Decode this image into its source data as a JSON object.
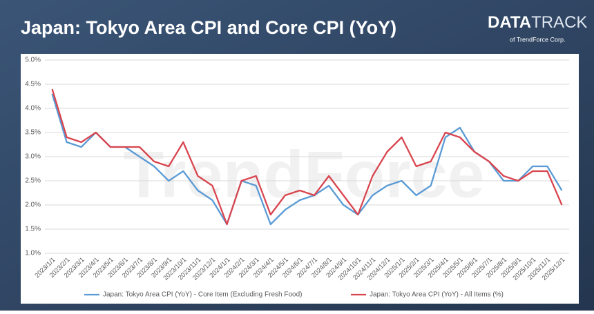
{
  "header": {
    "title": "Japan: Tokyo Area CPI and Core CPI (YoY)",
    "logo_main": "DATA",
    "logo_accent": "TRACK",
    "logo_sub": "of TrendForce Corp."
  },
  "watermark": "TrendForce",
  "chart_data": {
    "type": "line",
    "categories": [
      "2023/1/1",
      "2023/2/1",
      "2023/3/1",
      "2023/4/1",
      "2023/5/1",
      "2023/6/1",
      "2023/7/1",
      "2023/8/1",
      "2023/9/1",
      "2023/10/1",
      "2023/11/1",
      "2023/12/1",
      "2024/1/1",
      "2024/2/1",
      "2024/3/1",
      "2024/4/1",
      "2024/5/1",
      "2024/6/1",
      "2024/7/1",
      "2024/8/1",
      "2024/9/1",
      "2024/10/1",
      "2024/11/1",
      "2024/12/1",
      "2025/1/1",
      "2025/2/1",
      "2025/3/1",
      "2025/4/1",
      "2025/5/1",
      "2025/6/1",
      "2025/7/1",
      "2025/8/1",
      "2025/9/1",
      "2025/10/1",
      "2025/11/1",
      "2025/12/1"
    ],
    "series": [
      {
        "name": "Japan: Tokyo Area CPI (YoY) - Core Item (Excluding Fresh Food)",
        "color": "#5b9bd5",
        "values": [
          4.3,
          3.3,
          3.2,
          3.5,
          3.2,
          3.2,
          3.0,
          2.8,
          2.5,
          2.7,
          2.3,
          2.1,
          1.6,
          2.5,
          2.4,
          1.6,
          1.9,
          2.1,
          2.2,
          2.4,
          2.0,
          1.8,
          2.2,
          2.4,
          2.5,
          2.2,
          2.4,
          3.4,
          3.6,
          3.1,
          2.9,
          2.5,
          2.5,
          2.8,
          2.8,
          2.3
        ]
      },
      {
        "name": "Japan: Tokyo Area CPI (YoY) - All Items (%)",
        "color": "#d9454f",
        "values": [
          4.4,
          3.4,
          3.3,
          3.5,
          3.2,
          3.2,
          3.2,
          2.9,
          2.8,
          3.3,
          2.6,
          2.4,
          1.6,
          2.5,
          2.6,
          1.8,
          2.2,
          2.3,
          2.2,
          2.6,
          2.2,
          1.8,
          2.6,
          3.1,
          3.4,
          2.8,
          2.9,
          3.5,
          3.4,
          3.1,
          2.9,
          2.6,
          2.5,
          2.7,
          2.7,
          2.0
        ]
      }
    ],
    "ylim": [
      1.0,
      5.0
    ],
    "yticks": [
      {
        "value": 1.0,
        "label": "1.0%"
      },
      {
        "value": 1.5,
        "label": "1.5%"
      },
      {
        "value": 2.0,
        "label": "2.0%"
      },
      {
        "value": 2.5,
        "label": "2.5%"
      },
      {
        "value": 3.0,
        "label": "3.0%"
      },
      {
        "value": 3.5,
        "label": "3.5%"
      },
      {
        "value": 4.0,
        "label": "4.0%"
      },
      {
        "value": 4.5,
        "label": "4.5%"
      },
      {
        "value": 5.0,
        "label": "5.0%"
      }
    ],
    "grid": true,
    "legend": "bottom"
  }
}
